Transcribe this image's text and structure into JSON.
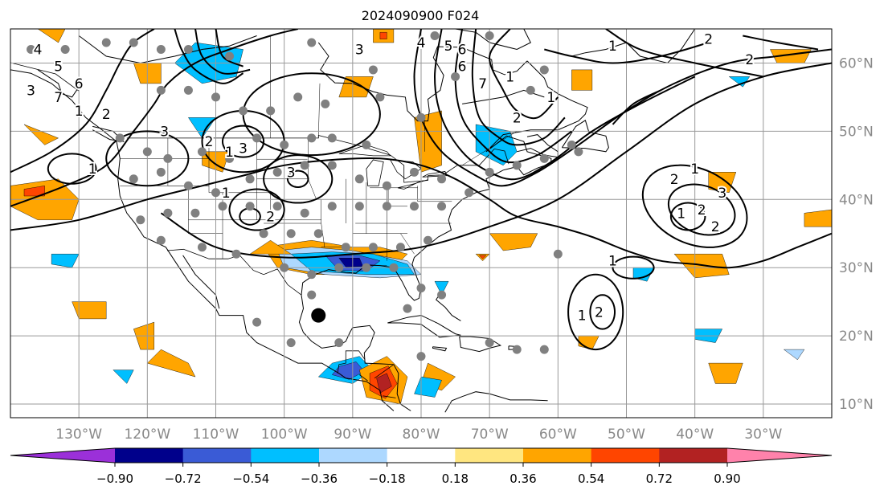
{
  "title": "2024090900 F024",
  "map": {
    "lon_range": [
      -140,
      -20
    ],
    "lat_range": [
      8,
      65
    ],
    "lon_ticks": [
      {
        "lon": -130,
        "label": "130°W"
      },
      {
        "lon": -120,
        "label": "120°W"
      },
      {
        "lon": -110,
        "label": "110°W"
      },
      {
        "lon": -100,
        "label": "100°W"
      },
      {
        "lon": -90,
        "label": "90°W"
      },
      {
        "lon": -80,
        "label": "80°W"
      },
      {
        "lon": -70,
        "label": "70°W"
      },
      {
        "lon": -60,
        "label": "60°W"
      },
      {
        "lon": -50,
        "label": "50°W"
      },
      {
        "lon": -40,
        "label": "40°W"
      },
      {
        "lon": -30,
        "label": "30°W"
      }
    ],
    "lat_ticks": [
      {
        "lat": 60,
        "label": "60°N"
      },
      {
        "lat": 50,
        "label": "50°N"
      },
      {
        "lat": 40,
        "label": "40°N"
      },
      {
        "lat": 30,
        "label": "30°N"
      },
      {
        "lat": 20,
        "label": "20°N"
      },
      {
        "lat": 10,
        "label": "10°N"
      }
    ],
    "tick_label_color": "#888888",
    "grid": true,
    "storm_marker": {
      "lon": -95,
      "lat": 23
    }
  },
  "colorbar": {
    "extend": "both",
    "bins": [
      {
        "color": "#9b30d9"
      },
      {
        "color": "#00008b"
      },
      {
        "color": "#3a5bd6"
      },
      {
        "color": "#00bfff"
      },
      {
        "color": "#add8ff"
      },
      {
        "color": "#ffffff"
      },
      {
        "color": "#ffe680"
      },
      {
        "color": "#ffa500"
      },
      {
        "color": "#ff4500"
      },
      {
        "color": "#b22222"
      },
      {
        "color": "#ff82ab"
      }
    ],
    "tick_labels": [
      "−0.90",
      "−0.72",
      "−0.54",
      "−0.36",
      "−0.18",
      "0.18",
      "0.36",
      "0.54",
      "0.72",
      "0.90"
    ]
  },
  "contour_labels": [
    "4",
    "3",
    "5",
    "6",
    "7",
    "1",
    "2",
    "3",
    "1",
    "1",
    "3",
    "2",
    "3",
    "2",
    "1",
    "3",
    "4",
    "5",
    "6",
    "7",
    "2",
    "1",
    "6",
    "2",
    "1",
    "1",
    "2",
    "3",
    "1",
    "2",
    "2",
    "1",
    "2",
    "1",
    "1",
    "2"
  ],
  "stations": [
    {
      "lon": -137,
      "lat": 62
    },
    {
      "lon": -132,
      "lat": 62
    },
    {
      "lon": -126,
      "lat": 63
    },
    {
      "lon": -122,
      "lat": 63
    },
    {
      "lon": -118,
      "lat": 62
    },
    {
      "lon": -114,
      "lat": 62
    },
    {
      "lon": -108,
      "lat": 61
    },
    {
      "lon": -96,
      "lat": 63
    },
    {
      "lon": -87,
      "lat": 59
    },
    {
      "lon": -78,
      "lat": 64
    },
    {
      "lon": -75,
      "lat": 58
    },
    {
      "lon": -70,
      "lat": 64
    },
    {
      "lon": -62,
      "lat": 59
    },
    {
      "lon": -64,
      "lat": 56
    },
    {
      "lon": -118,
      "lat": 56
    },
    {
      "lon": -114,
      "lat": 56
    },
    {
      "lon": -110,
      "lat": 55
    },
    {
      "lon": -106,
      "lat": 53
    },
    {
      "lon": -102,
      "lat": 53
    },
    {
      "lon": -98,
      "lat": 55
    },
    {
      "lon": -94,
      "lat": 54
    },
    {
      "lon": -86,
      "lat": 55
    },
    {
      "lon": -80,
      "lat": 52
    },
    {
      "lon": -124,
      "lat": 49
    },
    {
      "lon": -120,
      "lat": 47
    },
    {
      "lon": -117,
      "lat": 46
    },
    {
      "lon": -112,
      "lat": 47
    },
    {
      "lon": -108,
      "lat": 46
    },
    {
      "lon": -104,
      "lat": 49
    },
    {
      "lon": -100,
      "lat": 48
    },
    {
      "lon": -96,
      "lat": 49
    },
    {
      "lon": -93,
      "lat": 49
    },
    {
      "lon": -88,
      "lat": 48
    },
    {
      "lon": -122,
      "lat": 43
    },
    {
      "lon": -118,
      "lat": 44
    },
    {
      "lon": -114,
      "lat": 42
    },
    {
      "lon": -110,
      "lat": 41
    },
    {
      "lon": -105,
      "lat": 43
    },
    {
      "lon": -101,
      "lat": 44
    },
    {
      "lon": -97,
      "lat": 45
    },
    {
      "lon": -93,
      "lat": 45
    },
    {
      "lon": -89,
      "lat": 43
    },
    {
      "lon": -85,
      "lat": 42
    },
    {
      "lon": -81,
      "lat": 44
    },
    {
      "lon": -77,
      "lat": 43
    },
    {
      "lon": -73,
      "lat": 41
    },
    {
      "lon": -70,
      "lat": 44
    },
    {
      "lon": -66,
      "lat": 45
    },
    {
      "lon": -62,
      "lat": 46
    },
    {
      "lon": -58,
      "lat": 48
    },
    {
      "lon": -121,
      "lat": 37
    },
    {
      "lon": -117,
      "lat": 38
    },
    {
      "lon": -113,
      "lat": 38
    },
    {
      "lon": -109,
      "lat": 39
    },
    {
      "lon": -105,
      "lat": 39
    },
    {
      "lon": -101,
      "lat": 39
    },
    {
      "lon": -97,
      "lat": 38
    },
    {
      "lon": -93,
      "lat": 39
    },
    {
      "lon": -89,
      "lat": 39
    },
    {
      "lon": -85,
      "lat": 39
    },
    {
      "lon": -81,
      "lat": 39
    },
    {
      "lon": -77,
      "lat": 39
    },
    {
      "lon": -118,
      "lat": 34
    },
    {
      "lon": -112,
      "lat": 33
    },
    {
      "lon": -107,
      "lat": 32
    },
    {
      "lon": -103,
      "lat": 35
    },
    {
      "lon": -99,
      "lat": 35
    },
    {
      "lon": -95,
      "lat": 35
    },
    {
      "lon": -91,
      "lat": 33
    },
    {
      "lon": -87,
      "lat": 33
    },
    {
      "lon": -83,
      "lat": 33
    },
    {
      "lon": -79,
      "lat": 34
    },
    {
      "lon": -100,
      "lat": 30
    },
    {
      "lon": -96,
      "lat": 29
    },
    {
      "lon": -92,
      "lat": 30
    },
    {
      "lon": -88,
      "lat": 30
    },
    {
      "lon": -84,
      "lat": 30
    },
    {
      "lon": -80,
      "lat": 27
    },
    {
      "lon": -82,
      "lat": 24
    },
    {
      "lon": -96,
      "lat": 26
    },
    {
      "lon": -104,
      "lat": 22
    },
    {
      "lon": -99,
      "lat": 19
    },
    {
      "lon": -92,
      "lat": 19
    },
    {
      "lon": -77,
      "lat": 26
    },
    {
      "lon": -80,
      "lat": 17
    },
    {
      "lon": -70,
      "lat": 19
    },
    {
      "lon": -66,
      "lat": 18
    },
    {
      "lon": -62,
      "lat": 18
    },
    {
      "lon": -60,
      "lat": 32
    },
    {
      "lon": -57,
      "lat": 47
    }
  ]
}
